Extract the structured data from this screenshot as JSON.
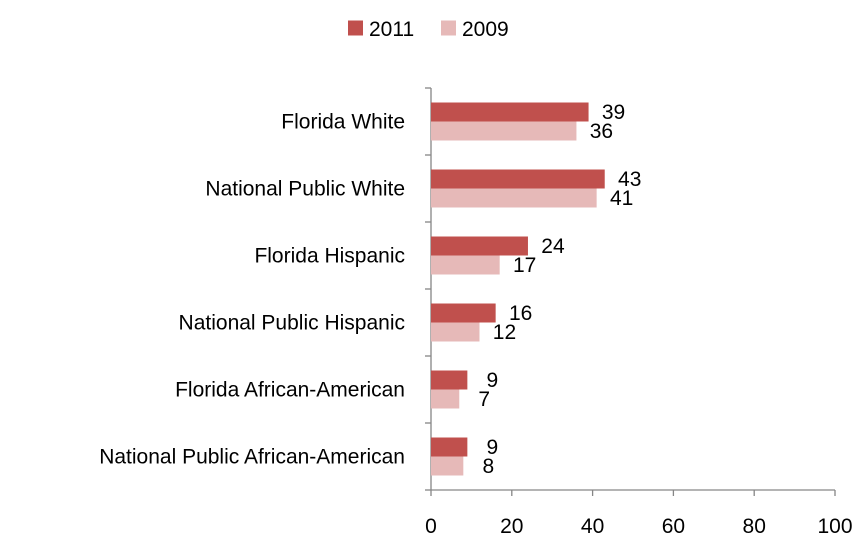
{
  "chart_data": {
    "type": "bar",
    "orientation": "horizontal",
    "categories": [
      "Florida White",
      "National Public White",
      "Florida Hispanic",
      "National Public Hispanic",
      "Florida African-American",
      "National Public African-American"
    ],
    "series": [
      {
        "name": "2011",
        "values": [
          39,
          43,
          24,
          16,
          9,
          9
        ],
        "color": "#c0504d"
      },
      {
        "name": "2009",
        "values": [
          36,
          41,
          17,
          12,
          7,
          8
        ],
        "color": "#e6b9b8"
      }
    ],
    "xlim": [
      0,
      100
    ],
    "x_ticks": [
      "0",
      "20",
      "40",
      "60",
      "80",
      "100"
    ],
    "legend_position": "top-center",
    "data_labels": true,
    "grid": false,
    "axis_color": "#868686"
  }
}
